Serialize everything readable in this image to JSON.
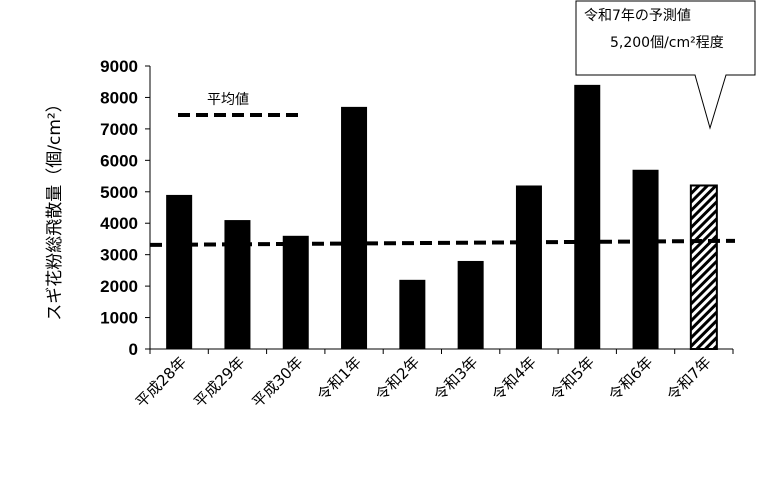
{
  "chart_data": {
    "type": "bar",
    "title": "",
    "xlabel": "",
    "ylabel": "スギ花粉総飛散量（個/cm²）",
    "ylim": [
      0,
      9000
    ],
    "yticks": [
      0,
      1000,
      2000,
      3000,
      4000,
      5000,
      6000,
      7000,
      8000,
      9000
    ],
    "categories": [
      "平成28年",
      "平成29年",
      "平成30年",
      "令和1年",
      "令和2年",
      "令和3年",
      "令和4年",
      "令和5年",
      "令和6年",
      "令和7年"
    ],
    "values": [
      4900,
      4100,
      3600,
      7700,
      2200,
      2800,
      5200,
      8400,
      5700,
      5200
    ],
    "bar_styles": [
      "solid",
      "solid",
      "solid",
      "solid",
      "solid",
      "solid",
      "solid",
      "solid",
      "solid",
      "hatched"
    ],
    "bar_color": "#000000",
    "average_line": {
      "label": "平均値",
      "start_value": 3310,
      "end_value": 3440,
      "style": "dashed"
    },
    "legend_placement": "top-left",
    "grid": false,
    "annotation": {
      "line1": "令和7年の予測値",
      "line2": "5,200個/cm²程度",
      "points_to": "令和7年"
    }
  }
}
